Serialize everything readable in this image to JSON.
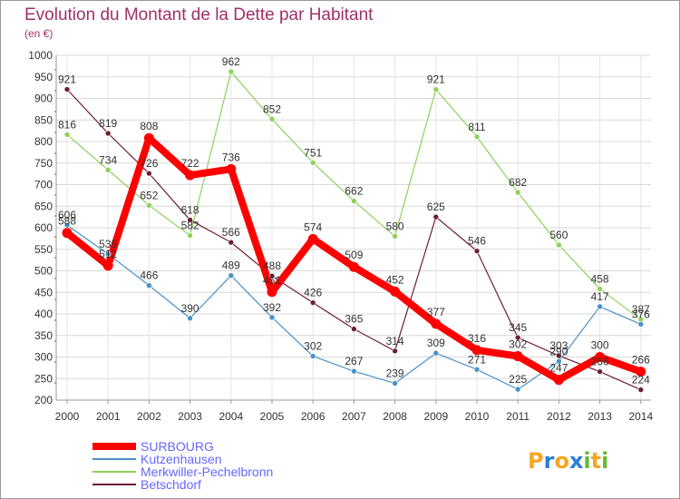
{
  "chart_data": {
    "type": "line",
    "title": "Evolution du Montant de la Dette par Habitant",
    "subtitle": "(en €)",
    "x": [
      "2000",
      "2001",
      "2002",
      "2003",
      "2004",
      "2005",
      "2006",
      "2007",
      "2008",
      "2009",
      "2010",
      "2011",
      "2012",
      "2013",
      "2014"
    ],
    "y_ticks": [
      "200",
      "250",
      "300",
      "350",
      "400",
      "450",
      "500",
      "550",
      "600",
      "650",
      "700",
      "750",
      "800",
      "850",
      "900",
      "950",
      "1000"
    ],
    "ylim": [
      200,
      1000
    ],
    "grid": true,
    "legend_position": "bottom-left",
    "series": [
      {
        "name": "Merkwiller-Pechelbronn",
        "color": "#8cd25a",
        "values": [
          816,
          734,
          652,
          582,
          962,
          852,
          751,
          662,
          580,
          921,
          811,
          682,
          560,
          458,
          387
        ],
        "labels": [
          "816",
          "734",
          "652",
          "582",
          "962",
          "852",
          "751",
          "662",
          "580",
          "921",
          "811",
          "682",
          "560",
          "458",
          "387"
        ]
      },
      {
        "name": "Betschdorf",
        "color": "#6e1e32",
        "values": [
          921,
          819,
          726,
          618,
          566,
          488,
          426,
          365,
          314,
          625,
          546,
          345,
          303,
          266,
          224
        ],
        "labels": [
          "921",
          "819",
          "726",
          "618",
          "566",
          "488",
          "426",
          "365",
          "314",
          "625",
          "546",
          "345",
          "303",
          "266",
          "224"
        ]
      },
      {
        "name": "Kutzenhausen",
        "color": "#4a90c8",
        "values": [
          606,
          539,
          466,
          390,
          489,
          392,
          302,
          267,
          239,
          309,
          271,
          225,
          290,
          417,
          376
        ],
        "labels": [
          "606",
          "539",
          "466",
          "390",
          "489",
          "392",
          "302",
          "267",
          "239",
          "309",
          "271",
          "225",
          "290",
          "417",
          "376"
        ]
      },
      {
        "name": "SURBOURG",
        "color": "#ff0000",
        "values": [
          588,
          512,
          808,
          722,
          736,
          451,
          574,
          509,
          452,
          377,
          316,
          302,
          247,
          300,
          266
        ],
        "labels": [
          "588",
          "512",
          "808",
          "722",
          "736",
          "451",
          "574",
          "509",
          "452",
          "377",
          "316",
          "302",
          "247",
          "300",
          "266"
        ]
      }
    ],
    "legend": [
      {
        "name": "SURBOURG",
        "color": "#ff0000",
        "text_color": "#6666ff",
        "thick": true
      },
      {
        "name": "Kutzenhausen",
        "color": "#4a90c8",
        "text_color": "#6666ff",
        "thick": false
      },
      {
        "name": "Merkwiller-Pechelbronn",
        "color": "#8cd25a",
        "text_color": "#6666ff",
        "thick": false
      },
      {
        "name": "Betschdorf",
        "color": "#6e1e32",
        "text_color": "#6666ff",
        "thick": false
      }
    ]
  },
  "logo": {
    "text": "Proxiti",
    "letter_colors": [
      "#f5a623",
      "#2b7fd4",
      "#f5a623",
      "#2b7fd4",
      "#66bb33",
      "#f5a623",
      "#66bb33"
    ]
  }
}
